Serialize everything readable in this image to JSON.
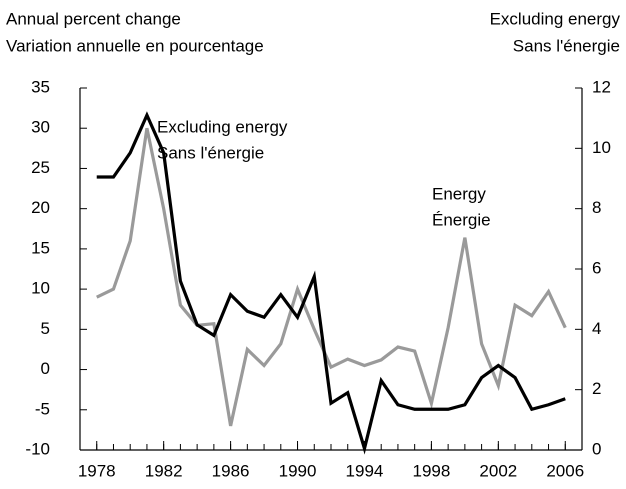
{
  "chart_data": {
    "type": "line",
    "ylabel": [
      "Annual percent change",
      "Variation annuelle en pourcentage"
    ],
    "y2label": [
      "Excluding energy",
      "Sans l'énergie"
    ],
    "x": [
      1978,
      1979,
      1980,
      1981,
      1982,
      1983,
      1984,
      1985,
      1986,
      1987,
      1988,
      1989,
      1990,
      1991,
      1992,
      1993,
      1994,
      1995,
      1996,
      1997,
      1998,
      1999,
      2000,
      2001,
      2002,
      2003,
      2004,
      2005,
      2006
    ],
    "xlim": [
      1977,
      2007
    ],
    "xticks": [
      1978,
      1982,
      1986,
      1990,
      1994,
      1998,
      2002,
      2006
    ],
    "ylim": [
      -10,
      35
    ],
    "yticks": [
      -10,
      -5,
      0,
      5,
      10,
      15,
      20,
      25,
      30,
      35
    ],
    "y2lim": [
      0,
      12
    ],
    "y2ticks": [
      0,
      2,
      4,
      6,
      8,
      10,
      12
    ],
    "series": [
      {
        "name": "Energy",
        "label_line2": "Énergie",
        "color": "#9a9a9a",
        "values": [
          9,
          10,
          16,
          30,
          20,
          8,
          5.5,
          5.7,
          -7,
          2.5,
          0.5,
          3.2,
          10,
          5,
          0.3,
          1.3,
          0.5,
          1.2,
          2.8,
          2.3,
          -4.2,
          5.2,
          16.4,
          3.2,
          -2,
          8,
          6.7,
          9.7,
          5.2
        ]
      },
      {
        "name": "Excluding energy",
        "label_line2": "Sans l'énergie",
        "color": "#000000",
        "axis": "y2",
        "values": [
          9.05,
          9.05,
          9.85,
          11.1,
          9.85,
          5.6,
          4.15,
          3.8,
          5.15,
          4.6,
          4.4,
          5.15,
          4.4,
          5.75,
          1.55,
          1.9,
          0.05,
          2.3,
          1.5,
          1.35,
          1.35,
          1.35,
          1.5,
          2.4,
          2.8,
          2.4,
          1.35,
          1.5,
          1.7
        ]
      }
    ]
  }
}
